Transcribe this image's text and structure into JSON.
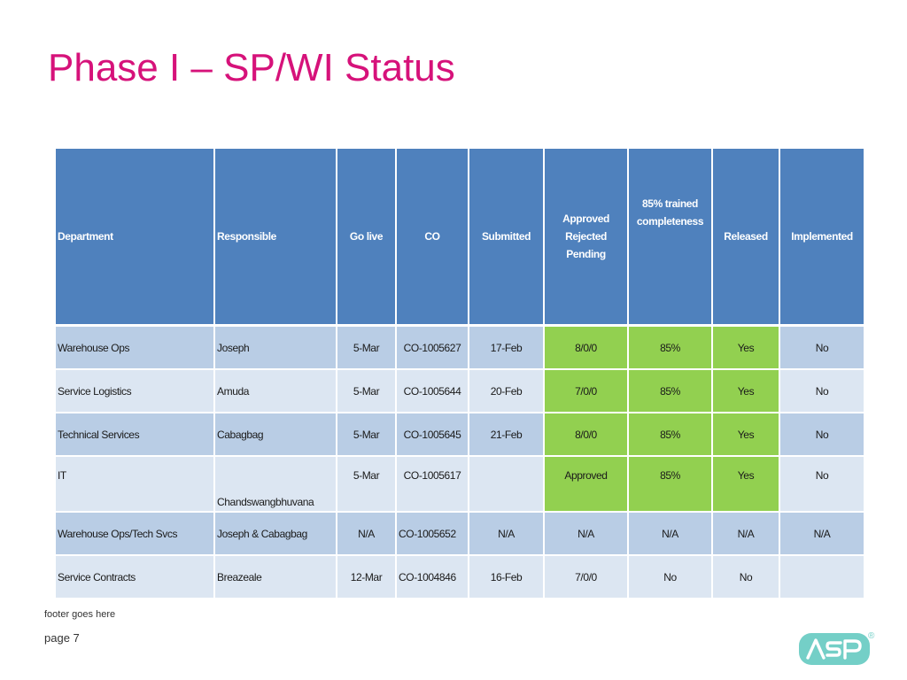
{
  "slide": {
    "title": "Phase I – SP/WI Status",
    "footer": "footer goes here",
    "page": "page 7",
    "logo_text": "ASP",
    "registered_mark": "®"
  },
  "colors": {
    "title": "#d6127a",
    "header_bg": "#4f81bd",
    "row_dark": "#b9cde5",
    "row_light": "#dce6f2",
    "highlight_green": "#92d050",
    "logo": "#74cfc7"
  },
  "table": {
    "headers": {
      "department": "Department",
      "responsible": "Responsible",
      "golive": "Go live",
      "co": "CO",
      "submitted": "Submitted",
      "approved_line1": "Approved",
      "approved_line2": "Rejected",
      "approved_line3": "Pending",
      "trained_line1": "85% trained",
      "trained_line2": "completeness",
      "released": "Released",
      "implemented": "Implemented"
    },
    "rows": [
      {
        "department": "Warehouse Ops",
        "responsible": "Joseph",
        "golive": "5-Mar",
        "co": "CO-1005627",
        "submitted": "17-Feb",
        "approved": "8/0/0",
        "trained": "85%",
        "released": "Yes",
        "implemented": "No"
      },
      {
        "department": "Service Logistics",
        "responsible": "Amuda",
        "golive": "5-Mar",
        "co": "CO-1005644",
        "submitted": "20-Feb",
        "approved": "7/0/0",
        "trained": "85%",
        "released": "Yes",
        "implemented": "No"
      },
      {
        "department": "Technical Services",
        "responsible": "Cabagbag",
        "golive": "5-Mar",
        "co": "CO-1005645",
        "submitted": "21-Feb",
        "approved": "8/0/0",
        "trained": "85%",
        "released": "Yes",
        "implemented": "No"
      },
      {
        "department": "IT",
        "responsible": "Chandswangbhuvana",
        "golive": "5-Mar",
        "co": "CO-1005617",
        "submitted": "",
        "approved": "Approved",
        "trained": "85%",
        "released": "Yes",
        "implemented": "No"
      },
      {
        "department": "Warehouse Ops/Tech Svcs",
        "responsible": "Joseph & Cabagbag",
        "golive": "N/A",
        "co": "CO-1005652",
        "submitted": "N/A",
        "approved": "N/A",
        "trained": "N/A",
        "released": "N/A",
        "implemented": "N/A"
      },
      {
        "department": "Service Contracts",
        "responsible": "Breazeale",
        "golive": "12-Mar",
        "co": "CO-1004846",
        "submitted": "16-Feb",
        "approved": "7/0/0",
        "trained": "No",
        "released": "No",
        "implemented": ""
      }
    ]
  }
}
